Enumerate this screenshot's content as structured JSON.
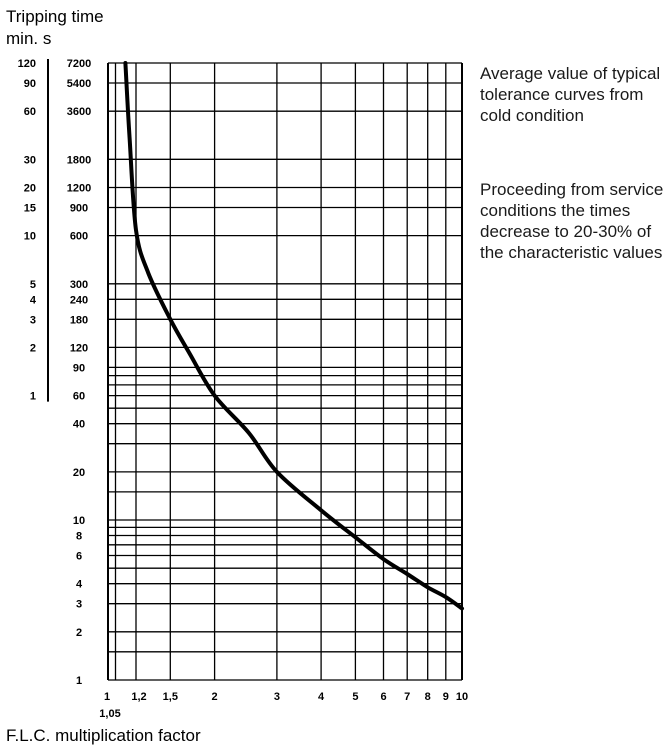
{
  "chart_data": {
    "type": "line",
    "title": "",
    "ylabel": "Tripping time",
    "y_units_label": "min.   s",
    "xlabel": "F.L.C. multiplication factor",
    "x_scale": "log",
    "y_scale": "log",
    "xlim": [
      1,
      10
    ],
    "ylim_seconds": [
      1,
      7200
    ],
    "grid": true,
    "x_ticks": [
      {
        "value": 1,
        "label": "1"
      },
      {
        "value": 1.05,
        "label": "1,05"
      },
      {
        "value": 1.2,
        "label": "1,2"
      },
      {
        "value": 1.5,
        "label": "1,5"
      },
      {
        "value": 2,
        "label": "2"
      },
      {
        "value": 3,
        "label": "3"
      },
      {
        "value": 4,
        "label": "4"
      },
      {
        "value": 5,
        "label": "5"
      },
      {
        "value": 6,
        "label": "6"
      },
      {
        "value": 7,
        "label": "7"
      },
      {
        "value": 8,
        "label": "8"
      },
      {
        "value": 9,
        "label": "9"
      },
      {
        "value": 10,
        "label": "10"
      }
    ],
    "y_ticks_seconds": [
      {
        "value": 7200,
        "label": "7200"
      },
      {
        "value": 5400,
        "label": "5400"
      },
      {
        "value": 3600,
        "label": "3600"
      },
      {
        "value": 1800,
        "label": "1800"
      },
      {
        "value": 1200,
        "label": "1200"
      },
      {
        "value": 900,
        "label": "900"
      },
      {
        "value": 600,
        "label": "600"
      },
      {
        "value": 300,
        "label": "300"
      },
      {
        "value": 240,
        "label": "240"
      },
      {
        "value": 180,
        "label": "180"
      },
      {
        "value": 120,
        "label": "120"
      },
      {
        "value": 90,
        "label": "90"
      },
      {
        "value": 60,
        "label": "60"
      },
      {
        "value": 40,
        "label": "40"
      },
      {
        "value": 20,
        "label": "20"
      },
      {
        "value": 10,
        "label": "10"
      },
      {
        "value": 8,
        "label": "8"
      },
      {
        "value": 6,
        "label": "6"
      },
      {
        "value": 4,
        "label": "4"
      },
      {
        "value": 3,
        "label": "3"
      },
      {
        "value": 2,
        "label": "2"
      },
      {
        "value": 1,
        "label": "1"
      }
    ],
    "y_ticks_minutes": [
      {
        "value_seconds": 7200,
        "label": "120"
      },
      {
        "value_seconds": 5400,
        "label": "90"
      },
      {
        "value_seconds": 3600,
        "label": "60"
      },
      {
        "value_seconds": 1800,
        "label": "30"
      },
      {
        "value_seconds": 1200,
        "label": "20"
      },
      {
        "value_seconds": 900,
        "label": "15"
      },
      {
        "value_seconds": 600,
        "label": "10"
      },
      {
        "value_seconds": 300,
        "label": "5"
      },
      {
        "value_seconds": 240,
        "label": "4"
      },
      {
        "value_seconds": 180,
        "label": "3"
      },
      {
        "value_seconds": 120,
        "label": "2"
      },
      {
        "value_seconds": 60,
        "label": "1"
      }
    ],
    "grid_x": [
      1,
      1.05,
      1.2,
      1.5,
      2,
      3,
      4,
      5,
      6,
      7,
      8,
      9,
      10
    ],
    "grid_y_seconds": [
      1,
      1.5,
      2,
      3,
      4,
      5,
      6,
      7,
      8,
      9,
      10,
      15,
      20,
      30,
      40,
      50,
      60,
      70,
      80,
      90,
      120,
      180,
      240,
      300,
      600,
      900,
      1200,
      1800,
      3600,
      5400,
      7200
    ],
    "series": [
      {
        "color": "#000000",
        "x": [
          1.12,
          1.15,
          1.2,
          1.3,
          1.5,
          1.7,
          2.0,
          2.5,
          3.0,
          4.0,
          5.0,
          6.0,
          7.0,
          8.0,
          9.0,
          10.0
        ],
        "y_seconds": [
          7200,
          2500,
          650,
          350,
          180,
          110,
          60,
          35,
          20,
          11.5,
          7.8,
          5.7,
          4.6,
          3.8,
          3.3,
          2.8
        ]
      }
    ],
    "annotations": [
      "Average value of typical tolerance curves from cold condition",
      "Proceeding from service conditions the times decrease to 20-30% of the characteristic values"
    ]
  }
}
